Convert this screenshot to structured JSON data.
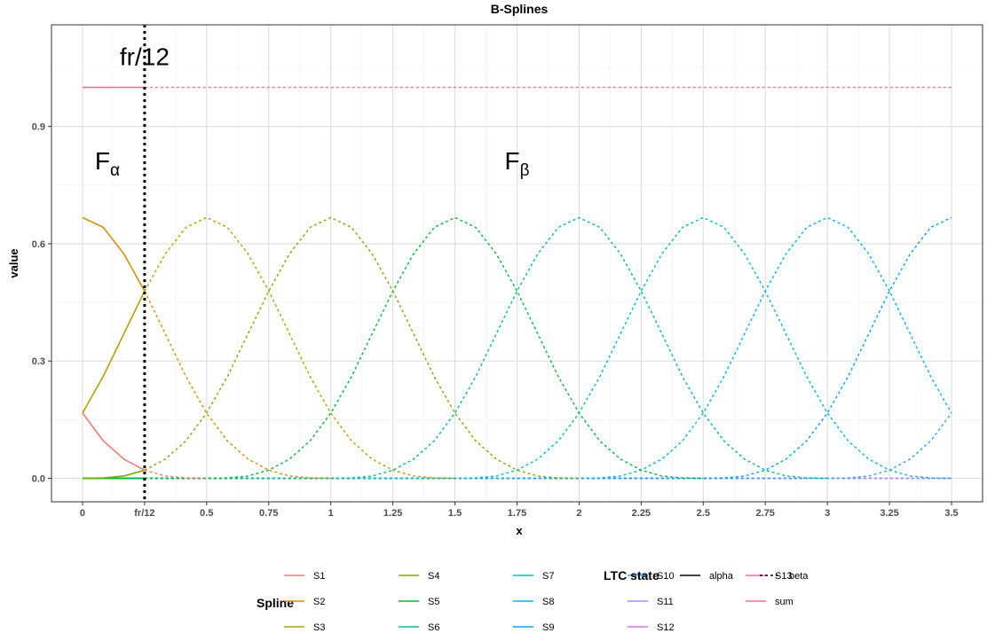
{
  "chart_data": {
    "type": "line",
    "title": "B-Splines",
    "xlabel": "x",
    "ylabel": "value",
    "xlim": [
      -0.125,
      3.625
    ],
    "ylim": [
      -0.06,
      1.16
    ],
    "x_ticks": [
      {
        "value": 0,
        "label": "0"
      },
      {
        "value": 0.25,
        "label": "fr/12"
      },
      {
        "value": 0.5,
        "label": "0.5"
      },
      {
        "value": 0.75,
        "label": "0.75"
      },
      {
        "value": 1,
        "label": "1"
      },
      {
        "value": 1.25,
        "label": "1.25"
      },
      {
        "value": 1.5,
        "label": "1.5"
      },
      {
        "value": 1.75,
        "label": "1.75"
      },
      {
        "value": 2,
        "label": "2"
      },
      {
        "value": 2.25,
        "label": "2.25"
      },
      {
        "value": 2.5,
        "label": "2.5"
      },
      {
        "value": 2.75,
        "label": "2.75"
      },
      {
        "value": 3,
        "label": "3"
      },
      {
        "value": 3.25,
        "label": "3.25"
      },
      {
        "value": 3.5,
        "label": "3.5"
      }
    ],
    "y_ticks": [
      {
        "value": 0,
        "label": "0.0"
      },
      {
        "value": 0.3,
        "label": "0.3"
      },
      {
        "value": 0.6,
        "label": "0.6"
      },
      {
        "value": 0.9,
        "label": "0.9"
      }
    ],
    "vline": {
      "x": 0.25,
      "label": "fr/12"
    },
    "annotations": [
      {
        "text": "F",
        "sub": "α",
        "x": 0.1,
        "y": 0.79
      },
      {
        "text": "F",
        "sub": "β",
        "x": 1.75,
        "y": 0.79
      }
    ],
    "grid": true,
    "legend_position": "bottom",
    "legend": {
      "spline_title": "Spline",
      "ltc_title": "LTC state",
      "ltc_items": [
        {
          "label": "alpha",
          "dash": "solid"
        },
        {
          "label": "beta",
          "dash": "dotted"
        }
      ]
    },
    "series": [
      {
        "name": "S1",
        "color": "#F8766D",
        "alpha": {
          "x": [
            0,
            0.0833,
            0.1667,
            0.25
          ],
          "y": [
            0.167,
            0.096,
            0.049,
            0.021
          ]
        },
        "beta": {
          "x": [
            0.25,
            0.3333,
            0.4167,
            0.5
          ],
          "y": [
            0.021,
            0.006,
            0.001,
            0
          ]
        }
      },
      {
        "name": "S2",
        "color": "#DE8C00",
        "alpha": {
          "x": [
            0,
            0.0833,
            0.1667,
            0.25
          ],
          "y": [
            0.667,
            0.642,
            0.574,
            0.479
          ]
        },
        "beta": {
          "x": [
            0.25,
            0.3333,
            0.4167,
            0.5,
            0.5833,
            0.6667,
            0.75,
            0.8333,
            0.9167,
            1
          ],
          "y": [
            0.479,
            0.37,
            0.26,
            0.167,
            0.096,
            0.049,
            0.021,
            0.006,
            0.001,
            0
          ]
        }
      },
      {
        "name": "S3",
        "color": "#B79F00",
        "alpha": {
          "x": [
            0,
            0.0833,
            0.1667,
            0.25
          ],
          "y": [
            0.167,
            0.261,
            0.37,
            0.479
          ]
        },
        "beta": {
          "x": [
            0.25,
            0.3333,
            0.4167,
            0.5,
            0.5833,
            0.6667,
            0.75,
            0.8333,
            0.9167,
            1,
            1.0833,
            1.1667,
            1.25,
            1.3333,
            1.4167,
            1.5
          ],
          "y": [
            0.479,
            0.574,
            0.642,
            0.667,
            0.642,
            0.574,
            0.479,
            0.37,
            0.26,
            0.167,
            0.096,
            0.049,
            0.021,
            0.006,
            0.001,
            0
          ]
        }
      },
      {
        "name": "S4",
        "color": "#7CAE00",
        "alpha": {
          "x": [
            0,
            0.0833,
            0.1667,
            0.25
          ],
          "y": [
            0,
            0.001,
            0.006,
            0.021
          ]
        },
        "beta": {
          "x": [
            0.25,
            0.3333,
            0.4167,
            0.5,
            0.5833,
            0.6667,
            0.75,
            0.8333,
            0.9167,
            1,
            1.0833,
            1.1667,
            1.25,
            1.3333,
            1.4167,
            1.5,
            1.5833,
            1.6667,
            1.75,
            1.8333,
            1.9167,
            2
          ],
          "y": [
            0.021,
            0.049,
            0.096,
            0.167,
            0.26,
            0.37,
            0.479,
            0.574,
            0.642,
            0.667,
            0.642,
            0.574,
            0.479,
            0.37,
            0.26,
            0.167,
            0.096,
            0.049,
            0.021,
            0.006,
            0.001,
            0
          ]
        }
      },
      {
        "name": "S5",
        "color": "#00BA38",
        "alpha": {
          "x": [
            0,
            0.0833,
            0.1667,
            0.25
          ],
          "y": [
            0,
            0,
            0,
            0
          ]
        },
        "beta": {
          "x": [
            0.25,
            0.5,
            0.5833,
            0.6667,
            0.75,
            0.8333,
            0.9167,
            1,
            1.0833,
            1.1667,
            1.25,
            1.3333,
            1.4167,
            1.5,
            1.5833,
            1.6667,
            1.75,
            1.8333,
            1.9167,
            2,
            2.0833,
            2.1667,
            2.25,
            2.3333,
            2.4167,
            2.5
          ],
          "y": [
            0,
            0,
            0.001,
            0.006,
            0.021,
            0.049,
            0.096,
            0.167,
            0.26,
            0.37,
            0.479,
            0.574,
            0.642,
            0.667,
            0.642,
            0.574,
            0.479,
            0.37,
            0.26,
            0.167,
            0.096,
            0.049,
            0.021,
            0.006,
            0.001,
            0
          ]
        }
      },
      {
        "name": "S6",
        "color": "#00C08B",
        "alpha": {
          "x": [
            0,
            0.0833,
            0.1667,
            0.25
          ],
          "y": [
            0,
            0,
            0,
            0
          ]
        },
        "beta": {
          "x": [
            0.25,
            1,
            1.0833,
            1.1667,
            1.25,
            1.3333,
            1.4167,
            1.5,
            1.5833,
            1.6667,
            1.75,
            1.8333,
            1.9167,
            2,
            2.0833,
            2.1667,
            2.25,
            2.3333,
            2.4167,
            2.5,
            2.5833,
            2.6667,
            2.75,
            2.8333,
            2.9167,
            3
          ],
          "y": [
            0,
            0,
            0.001,
            0.006,
            0.021,
            0.049,
            0.096,
            0.167,
            0.26,
            0.37,
            0.479,
            0.574,
            0.642,
            0.667,
            0.642,
            0.574,
            0.479,
            0.37,
            0.26,
            0.167,
            0.096,
            0.049,
            0.021,
            0.006,
            0.001,
            0
          ]
        }
      },
      {
        "name": "S7",
        "color": "#00BFC4",
        "alpha": {
          "x": [
            0,
            0.0833,
            0.1667,
            0.25
          ],
          "y": [
            0,
            0,
            0,
            0
          ]
        },
        "beta": {
          "x": [
            0.25,
            1.5,
            1.5833,
            1.6667,
            1.75,
            1.8333,
            1.9167,
            2,
            2.0833,
            2.1667,
            2.25,
            2.3333,
            2.4167,
            2.5,
            2.5833,
            2.6667,
            2.75,
            2.8333,
            2.9167,
            3,
            3.0833,
            3.1667,
            3.25,
            3.3333,
            3.4167,
            3.5
          ],
          "y": [
            0,
            0,
            0.001,
            0.006,
            0.021,
            0.049,
            0.096,
            0.167,
            0.26,
            0.37,
            0.479,
            0.574,
            0.642,
            0.667,
            0.642,
            0.574,
            0.479,
            0.37,
            0.26,
            0.167,
            0.096,
            0.049,
            0.021,
            0.006,
            0.001,
            0
          ]
        }
      },
      {
        "name": "S8",
        "color": "#00B4F0",
        "alpha": {
          "x": [
            0,
            0.0833,
            0.1667,
            0.25
          ],
          "y": [
            0,
            0,
            0,
            0
          ]
        },
        "beta": {
          "x": [
            0.25,
            2,
            2.0833,
            2.1667,
            2.25,
            2.3333,
            2.4167,
            2.5,
            2.5833,
            2.6667,
            2.75,
            2.8333,
            2.9167,
            3,
            3.0833,
            3.1667,
            3.25,
            3.3333,
            3.4167,
            3.5
          ],
          "y": [
            0,
            0,
            0.001,
            0.006,
            0.021,
            0.049,
            0.096,
            0.167,
            0.26,
            0.37,
            0.479,
            0.574,
            0.642,
            0.667,
            0.642,
            0.574,
            0.479,
            0.37,
            0.26,
            0.167
          ]
        }
      },
      {
        "name": "S9",
        "color": "#00A5FF",
        "alpha": {
          "x": [
            0,
            0.0833,
            0.1667,
            0.25
          ],
          "y": [
            0,
            0,
            0,
            0
          ]
        },
        "beta": {
          "x": [
            0.25,
            2.5,
            2.5833,
            2.6667,
            2.75,
            2.8333,
            2.9167,
            3,
            3.0833,
            3.1667,
            3.25,
            3.3333,
            3.4167,
            3.5
          ],
          "y": [
            0,
            0,
            0.001,
            0.006,
            0.021,
            0.049,
            0.096,
            0.167,
            0.26,
            0.37,
            0.479,
            0.574,
            0.642,
            0.667
          ]
        }
      },
      {
        "name": "S10",
        "color": "#35A2FF",
        "alpha": {
          "x": [
            0,
            0.0833,
            0.1667,
            0.25
          ],
          "y": [
            0,
            0,
            0,
            0
          ]
        },
        "beta": {
          "x": [
            0.25,
            3,
            3.0833,
            3.1667,
            3.25,
            3.3333,
            3.4167,
            3.5
          ],
          "y": [
            0,
            0,
            0.001,
            0.006,
            0.021,
            0.049,
            0.096,
            0.167
          ]
        }
      },
      {
        "name": "S11",
        "color": "#9590FF",
        "alpha": {
          "x": [
            0,
            0.0833,
            0.1667,
            0.25
          ],
          "y": [
            0,
            0,
            0,
            0
          ]
        },
        "beta": {
          "x": [
            0.25,
            3.5
          ],
          "y": [
            0,
            0
          ]
        }
      },
      {
        "name": "S12",
        "color": "#E76BF3",
        "alpha": {
          "x": [
            0,
            0.0833,
            0.1667,
            0.25
          ],
          "y": [
            0,
            0,
            0,
            0
          ]
        },
        "beta": {
          "x": [
            0.25,
            3.5
          ],
          "y": [
            0,
            0
          ]
        }
      },
      {
        "name": "S13",
        "color": "#FF62BC",
        "alpha": {
          "x": [
            0,
            0.0833,
            0.1667,
            0.25
          ],
          "y": [
            0,
            0,
            0,
            0
          ]
        },
        "beta": {
          "x": [
            0.25,
            3.5
          ],
          "y": [
            0,
            0
          ]
        }
      },
      {
        "name": "sum",
        "color": "#FF6C91",
        "alpha": {
          "x": [
            0,
            0.25
          ],
          "y": [
            1,
            1
          ]
        },
        "beta": {
          "x": [
            0.25,
            3.5
          ],
          "y": [
            1,
            1
          ]
        }
      }
    ]
  }
}
